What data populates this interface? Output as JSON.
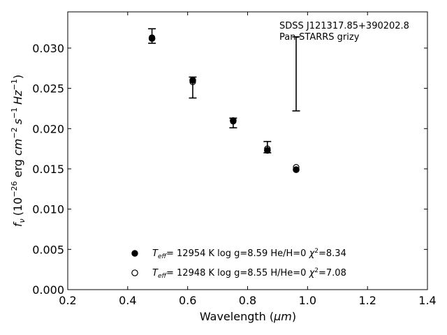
{
  "chart_data": {
    "type": "scatter",
    "xlabel_text": "Wavelength (",
    "xlabel_unit": "μm",
    "ylabel_text": "(10",
    "ylabel_exp1": "−26",
    "ylabel_mid": " erg ",
    "ylabel_cm": "cm",
    "ylabel_exp2": "−2",
    "ylabel_s": "s",
    "ylabel_exp3": "−1",
    "ylabel_hz": "Hz",
    "ylabel_exp4": "−1",
    "ylabel_f": "f",
    "ylabel_nu": "ν",
    "xlim": [
      0.2,
      1.4
    ],
    "ylim": [
      0.0,
      0.0345
    ],
    "xticks": [
      0.2,
      0.4,
      0.6,
      0.8,
      1.0,
      1.2,
      1.4
    ],
    "xtick_labels": [
      "0.2",
      "0.4",
      "0.6",
      "0.8",
      "1.0",
      "1.2",
      "1.4"
    ],
    "yticks": [
      0.0,
      0.005,
      0.01,
      0.015,
      0.02,
      0.025,
      0.03
    ],
    "ytick_labels": [
      "0.000",
      "0.005",
      "0.010",
      "0.015",
      "0.020",
      "0.025",
      "0.030"
    ],
    "annotation": [
      "SDSS J121317.85+390202.8",
      "Pan-STARRS grizy"
    ],
    "observed": {
      "x": [
        0.481,
        0.617,
        0.752,
        0.866,
        0.962
      ],
      "y": [
        0.0315,
        0.0251,
        0.0207,
        0.0177,
        0.0268
      ],
      "yerr": [
        0.0009,
        0.0013,
        0.0006,
        0.0007,
        0.0046
      ]
    },
    "series": [
      {
        "name_T": "T",
        "name_eff": "eff",
        "name_rest": "= 12954 K  log g=8.59  He/H=0  ",
        "name_chi": "χ",
        "name_chi_exp": "2",
        "name_chi_val": "=8.34",
        "marker": "filled",
        "x": [
          0.481,
          0.617,
          0.752,
          0.866,
          0.962
        ],
        "y": [
          0.0312,
          0.026,
          0.021,
          0.0173,
          0.0149
        ]
      },
      {
        "name_T": "T",
        "name_eff": "eff",
        "name_rest": "= 12948 K  log g=8.55  H/He=0  ",
        "name_chi": "χ",
        "name_chi_exp": "2",
        "name_chi_val": "=7.08",
        "marker": "open",
        "x": [
          0.481,
          0.617,
          0.752,
          0.866,
          0.962
        ],
        "y": [
          0.0313,
          0.0258,
          0.0209,
          0.0175,
          0.0152
        ]
      }
    ],
    "legend_position": "lower-center",
    "colors": {
      "marker": "#000000",
      "background": "#ffffff"
    }
  }
}
